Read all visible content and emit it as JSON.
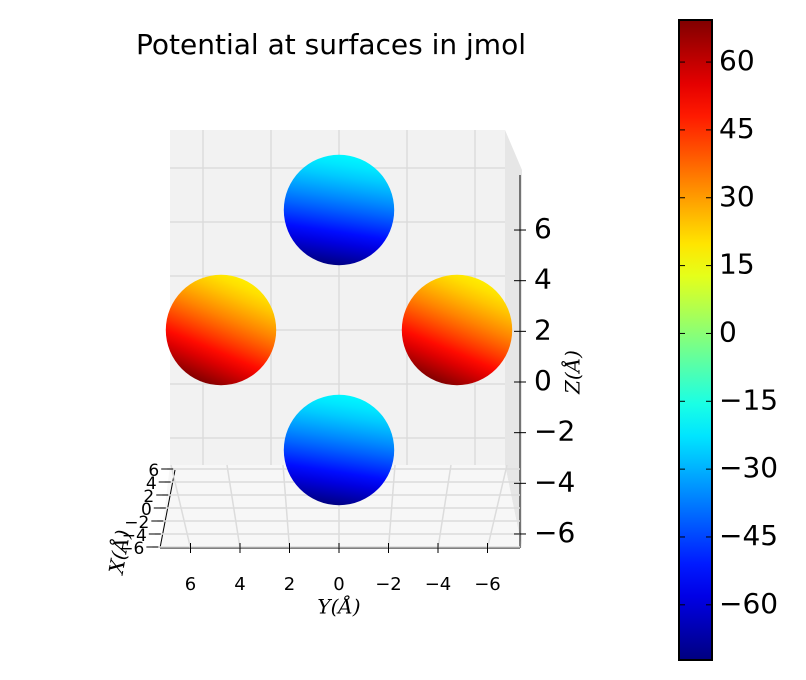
{
  "chart_data": {
    "type": "surface3d",
    "title": "Potential at surfaces in jmol",
    "xlabel": "X(Å)",
    "ylabel": "Y(Å)",
    "zlabel": "Z(Å)",
    "xticks": [
      6,
      4,
      2,
      0,
      {
        "value": -2,
        "label": "−2"
      },
      {
        "value": -4,
        "label": "−4"
      },
      {
        "value": -6,
        "label": "−6"
      }
    ],
    "yticks": [
      6,
      4,
      2,
      0,
      {
        "value": -2,
        "label": "−2"
      },
      {
        "value": -4,
        "label": "−4"
      },
      {
        "value": -6,
        "label": "−6"
      }
    ],
    "zticks": [
      6,
      4,
      2,
      0,
      {
        "value": -2,
        "label": "−2"
      },
      {
        "value": -4,
        "label": "−4"
      },
      {
        "value": -6,
        "label": "−6"
      }
    ],
    "spheres": [
      {
        "center": [
          0,
          0,
          5
        ],
        "radius": 2.3,
        "potential": [
          -72,
          -20
        ]
      },
      {
        "center": [
          0,
          5,
          0
        ],
        "radius": 2.3,
        "potential": [
          69,
          18
        ]
      },
      {
        "center": [
          0,
          -5,
          0
        ],
        "radius": 2.3,
        "potential": [
          69,
          18
        ]
      },
      {
        "center": [
          0,
          0,
          -5
        ],
        "radius": 2.3,
        "potential": [
          -72,
          -20
        ]
      }
    ],
    "colorbar": {
      "cmap": "jet",
      "clim": [
        -72.2,
        69.3
      ],
      "ticks": [
        60,
        45,
        30,
        15,
        0,
        {
          "value": -15,
          "label": "−15"
        },
        {
          "value": -30,
          "label": "−30"
        },
        {
          "value": -45,
          "label": "−45"
        },
        {
          "value": -60,
          "label": "−60"
        }
      ]
    }
  }
}
